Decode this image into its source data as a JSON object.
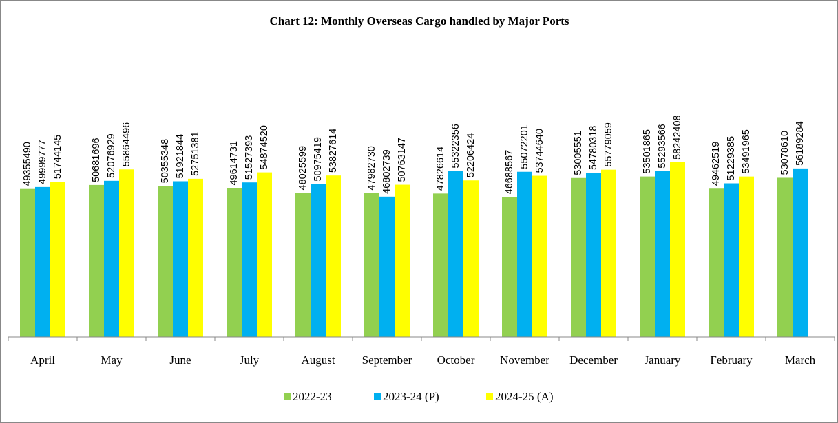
{
  "chart_data": {
    "type": "bar",
    "title": "Chart 12: Monthly Overseas Cargo handled by Major Ports",
    "categories": [
      "April",
      "May",
      "June",
      "July",
      "August",
      "September",
      "October",
      "November",
      "December",
      "January",
      "February",
      "March"
    ],
    "series": [
      {
        "name": "2022-23",
        "color": "#92d050",
        "values": [
          49355490,
          50681696,
          50355348,
          49614731,
          48025599,
          47982730,
          47826614,
          46688567,
          53005551,
          53501865,
          49462519,
          53078610
        ]
      },
      {
        "name": "2023-24 (P)",
        "color": "#00b0f0",
        "values": [
          49999777,
          52076929,
          51921844,
          51527393,
          50975419,
          46802739,
          55322356,
          55072201,
          54780318,
          55293566,
          51229385,
          56189284
        ]
      },
      {
        "name": "2024-25 (A)",
        "color": "#ffff00",
        "values": [
          51744145,
          55864496,
          52751381,
          54874520,
          53827614,
          50763147,
          52206424,
          53744640,
          55779059,
          58242408,
          53491965,
          null
        ]
      }
    ],
    "ylim": [
      0,
      80000000
    ],
    "legend": "bottom"
  }
}
